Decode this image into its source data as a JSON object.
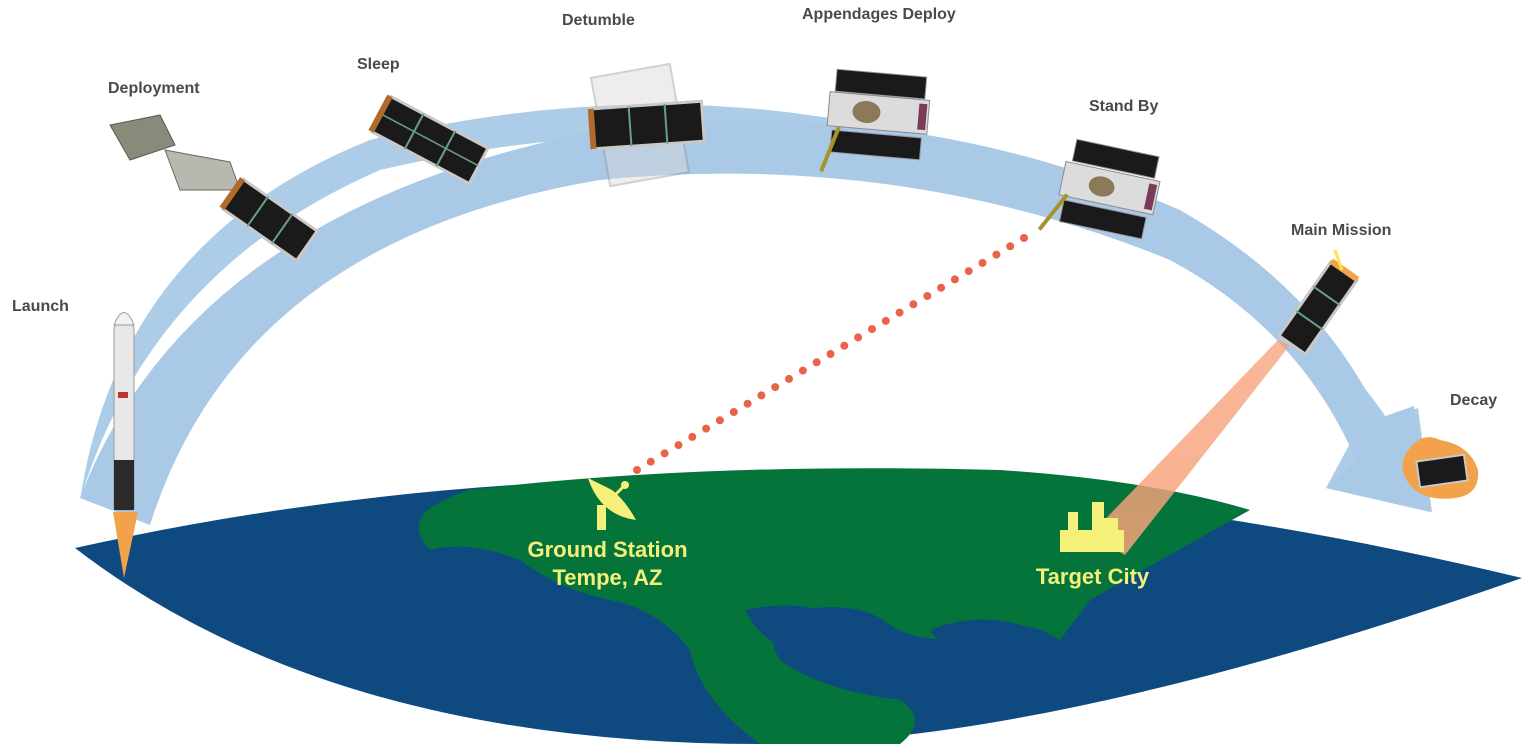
{
  "stages": {
    "launch": "Launch",
    "deployment": "Deployment",
    "sleep": "Sleep",
    "detumble": "Detumble",
    "appendages_deploy": "Appendages Deploy",
    "stand_by": "Stand By",
    "main_mission": "Main Mission",
    "decay": "Decay"
  },
  "ground_station": {
    "line1": "Ground Station",
    "line2": "Tempe, AZ"
  },
  "target_city": "Target City",
  "colors": {
    "ocean": "#0e4a80",
    "land": "#04743a",
    "orbit_arrow": "#a9c9e6",
    "stage_label": "#4a4a4a",
    "ground_label": "#f5f07a",
    "link_dots": "#e8634a",
    "imaging_beam": "#f6a27a",
    "satellite_panel": "#1a1a1a",
    "satellite_frame": "#c9c9c9",
    "flame": "#f2a24a"
  }
}
